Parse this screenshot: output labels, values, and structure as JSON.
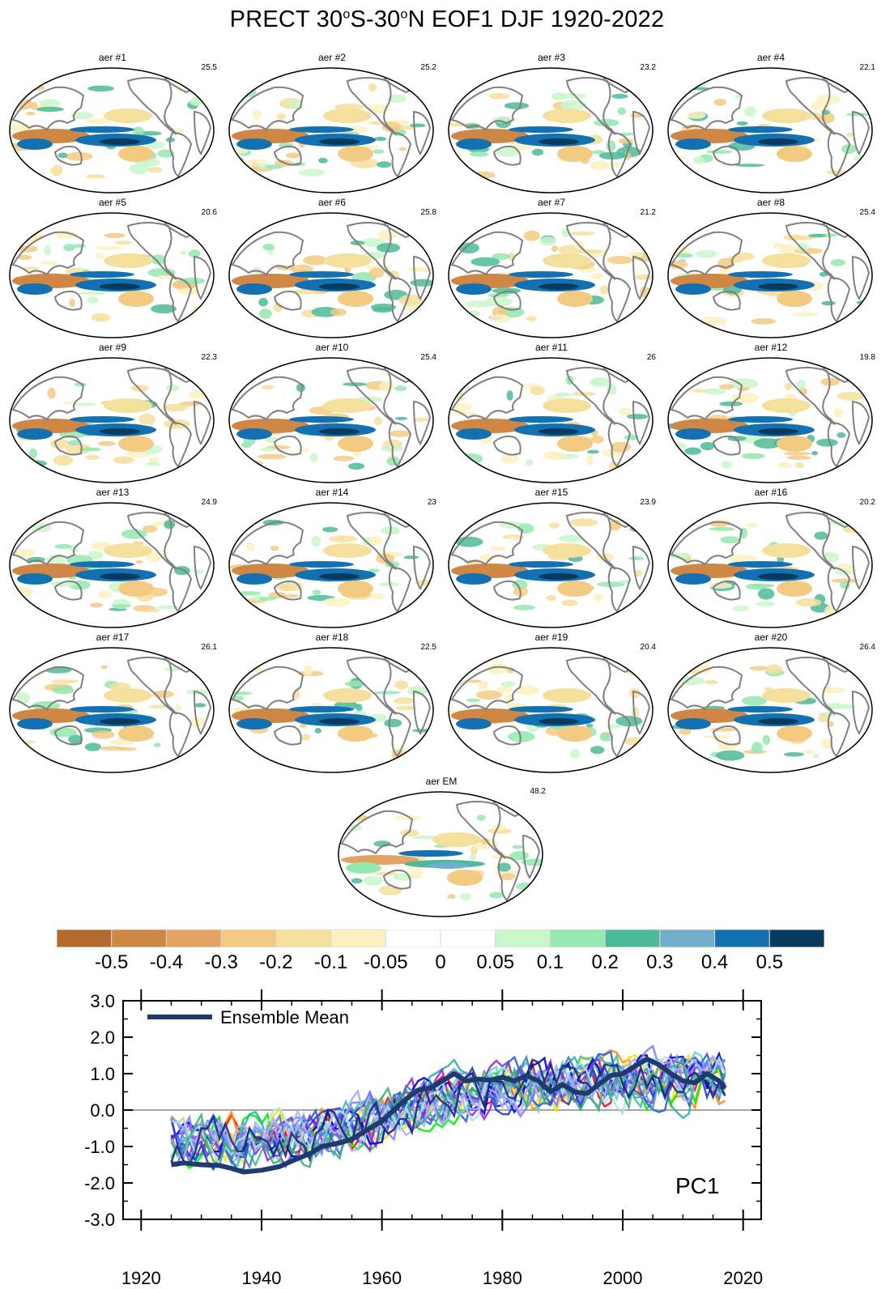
{
  "title": {
    "prefix": "PRECT 30",
    "deg1": "o",
    "mid": "S-30",
    "deg2": "o",
    "suffix": "N EOF1 DJF 1920-2022"
  },
  "maps": [
    {
      "label": "aer #1",
      "pct": "25.5"
    },
    {
      "label": "aer #2",
      "pct": "25.2"
    },
    {
      "label": "aer #3",
      "pct": "23.2"
    },
    {
      "label": "aer #4",
      "pct": "22.1"
    },
    {
      "label": "aer #5",
      "pct": "20.6"
    },
    {
      "label": "aer #6",
      "pct": "25.8"
    },
    {
      "label": "aer #7",
      "pct": "21.2"
    },
    {
      "label": "aer #8",
      "pct": "25.4"
    },
    {
      "label": "aer #9",
      "pct": "22.3"
    },
    {
      "label": "aer #10",
      "pct": "25.4"
    },
    {
      "label": "aer #11",
      "pct": "26"
    },
    {
      "label": "aer #12",
      "pct": "19.8"
    },
    {
      "label": "aer #13",
      "pct": "24.9"
    },
    {
      "label": "aer #14",
      "pct": "23"
    },
    {
      "label": "aer #15",
      "pct": "23.9"
    },
    {
      "label": "aer #16",
      "pct": "20.2"
    },
    {
      "label": "aer #17",
      "pct": "26.1"
    },
    {
      "label": "aer #18",
      "pct": "22.5"
    },
    {
      "label": "aer #19",
      "pct": "20.4"
    },
    {
      "label": "aer #20",
      "pct": "26.4"
    },
    {
      "label": "aer EM",
      "pct": "48.2"
    }
  ],
  "colorbar": {
    "colors": [
      "#b5692c",
      "#cf8745",
      "#e3a463",
      "#f3ca82",
      "#f5df9c",
      "#fbf1c0",
      "#ffffff",
      "#ffffff",
      "#c9f7cb",
      "#94e8b0",
      "#4cba98",
      "#70aecb",
      "#1471b1",
      "#073a5c"
    ],
    "labels": [
      "-0.5",
      "-0.4",
      "-0.3",
      "-0.2",
      "-0.1",
      "-0.05",
      "0",
      "0.05",
      "0.1",
      "0.2",
      "0.3",
      "0.4",
      "0.5"
    ]
  },
  "chart_data": {
    "type": "line",
    "ylim": [
      -3.0,
      3.0
    ],
    "xlim": [
      1917,
      2023
    ],
    "yticks": [
      "3.0",
      "2.0",
      "1.0",
      "0.0",
      "-1.0",
      "-2.0",
      "-3.0"
    ],
    "xticks": [
      "1920",
      "1940",
      "1960",
      "1980",
      "2000",
      "2020"
    ],
    "legend": "Ensemble Mean",
    "annotation": "PC1",
    "member_colors": [
      "#ff0000",
      "#ff8c00",
      "#ffe000",
      "#00ee00",
      "#20b2aa",
      "#6fd3c4",
      "#40c0a0",
      "#8a2be2",
      "#a020f0",
      "#0000cd",
      "#1e3cd7",
      "#2560e0",
      "#4682b4",
      "#6495ed",
      "#8080ff",
      "#9ab0f0",
      "#b0b0f5",
      "#b0e0e6",
      "#3cb371",
      "#1a237e"
    ],
    "ensemble_mean": {
      "name": "Ensemble Mean",
      "color": "#1f3a6e",
      "points": [
        [
          1925,
          -1.5
        ],
        [
          1927,
          -1.45
        ],
        [
          1930,
          -1.5
        ],
        [
          1933,
          -1.52
        ],
        [
          1935,
          -1.6
        ],
        [
          1937,
          -1.7
        ],
        [
          1940,
          -1.65
        ],
        [
          1943,
          -1.55
        ],
        [
          1945,
          -1.4
        ],
        [
          1948,
          -1.2
        ],
        [
          1950,
          -1.0
        ],
        [
          1953,
          -0.9
        ],
        [
          1955,
          -0.8
        ],
        [
          1958,
          -0.5
        ],
        [
          1960,
          -0.3
        ],
        [
          1962,
          0.0
        ],
        [
          1964,
          0.3
        ],
        [
          1966,
          0.55
        ],
        [
          1968,
          0.6
        ],
        [
          1970,
          0.8
        ],
        [
          1972,
          1.0
        ],
        [
          1974,
          0.8
        ],
        [
          1976,
          0.85
        ],
        [
          1978,
          0.82
        ],
        [
          1980,
          0.9
        ],
        [
          1982,
          0.8
        ],
        [
          1984,
          0.95
        ],
        [
          1986,
          0.8
        ],
        [
          1988,
          0.5
        ],
        [
          1990,
          0.7
        ],
        [
          1992,
          0.5
        ],
        [
          1994,
          0.45
        ],
        [
          1996,
          0.7
        ],
        [
          1998,
          0.95
        ],
        [
          2000,
          1.0
        ],
        [
          2002,
          1.2
        ],
        [
          2004,
          1.4
        ],
        [
          2006,
          1.25
        ],
        [
          2008,
          1.0
        ],
        [
          2010,
          0.8
        ],
        [
          2012,
          0.75
        ],
        [
          2014,
          1.0
        ],
        [
          2016,
          0.8
        ],
        [
          2017,
          0.6
        ]
      ]
    }
  }
}
